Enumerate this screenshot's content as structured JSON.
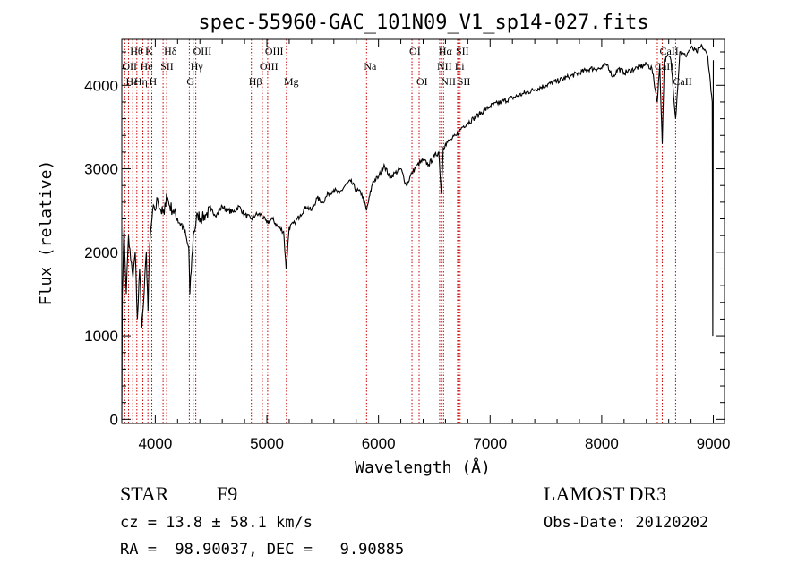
{
  "chart_data": {
    "type": "line",
    "title": "spec-55960-GAC_101N09_V1_sp14-027.fits",
    "xlabel": "Wavelength (Å)",
    "ylabel": "Flux (relative)",
    "xlim": [
      3700,
      9100
    ],
    "ylim": [
      -50,
      4550
    ],
    "xticks": [
      4000,
      5000,
      6000,
      7000,
      8000,
      9000
    ],
    "yticks": [
      0,
      1000,
      2000,
      3000,
      4000
    ],
    "grid": false,
    "series": [
      {
        "name": "spectrum",
        "x": [
          3700,
          3705,
          3720,
          3740,
          3760,
          3780,
          3800,
          3820,
          3840,
          3860,
          3880,
          3900,
          3920,
          3935,
          3950,
          3970,
          3990,
          4000,
          4020,
          4050,
          4080,
          4100,
          4130,
          4160,
          4200,
          4250,
          4290,
          4300,
          4310,
          4340,
          4380,
          4420,
          4450,
          4500,
          4550,
          4600,
          4650,
          4700,
          4750,
          4800,
          4861,
          4900,
          4950,
          5000,
          5050,
          5100,
          5150,
          5172,
          5200,
          5250,
          5300,
          5350,
          5400,
          5450,
          5500,
          5550,
          5600,
          5650,
          5700,
          5750,
          5800,
          5850,
          5893,
          5950,
          6000,
          6050,
          6100,
          6150,
          6200,
          6250,
          6300,
          6350,
          6400,
          6450,
          6500,
          6540,
          6563,
          6580,
          6600,
          6650,
          6700,
          6750,
          6800,
          6850,
          6900,
          6950,
          7000,
          7100,
          7200,
          7300,
          7400,
          7500,
          7600,
          7700,
          7800,
          7900,
          8000,
          8050,
          8100,
          8150,
          8200,
          8300,
          8400,
          8450,
          8498,
          8520,
          8542,
          8560,
          8600,
          8620,
          8662,
          8700,
          8750,
          8800,
          8850,
          8900,
          8950,
          8990,
          8995,
          9000
        ],
        "y": [
          0,
          1500,
          2300,
          1500,
          2200,
          1900,
          1700,
          2000,
          1200,
          1800,
          1100,
          1500,
          2000,
          1300,
          2100,
          2400,
          2550,
          2500,
          2650,
          2500,
          2450,
          2700,
          2550,
          2500,
          2400,
          2300,
          2100,
          2050,
          1500,
          2200,
          2450,
          2400,
          2450,
          2500,
          2450,
          2550,
          2500,
          2480,
          2550,
          2450,
          2400,
          2450,
          2450,
          2350,
          2400,
          2300,
          2250,
          1800,
          2300,
          2350,
          2450,
          2550,
          2500,
          2650,
          2600,
          2700,
          2750,
          2700,
          2800,
          2850,
          2750,
          2700,
          2500,
          2850,
          2900,
          3050,
          2900,
          2950,
          3000,
          2800,
          2950,
          3050,
          3100,
          3050,
          3150,
          3200,
          2700,
          3250,
          3300,
          3350,
          3400,
          3500,
          3550,
          3600,
          3650,
          3700,
          3750,
          3800,
          3850,
          3900,
          3950,
          4000,
          4050,
          4100,
          4150,
          4200,
          4200,
          4250,
          4100,
          4200,
          4150,
          4200,
          4250,
          4200,
          3800,
          4250,
          3300,
          4300,
          4350,
          4300,
          3600,
          4400,
          4350,
          4450,
          4400,
          4470,
          4350,
          3800,
          1000,
          4300
        ]
      }
    ],
    "line_labels": [
      {
        "text": "Hθ",
        "x": 3798,
        "row": 1
      },
      {
        "text": "K",
        "x": 3934,
        "row": 1
      },
      {
        "text": "Hδ",
        "x": 4102,
        "row": 1
      },
      {
        "text": "OIII",
        "x": 4363,
        "row": 1
      },
      {
        "text": "OIII",
        "x": 5007,
        "row": 1
      },
      {
        "text": "OI",
        "x": 6300,
        "row": 1
      },
      {
        "text": "Hα",
        "x": 6563,
        "row": 1
      },
      {
        "text": "SII",
        "x": 6717,
        "row": 1
      },
      {
        "text": "CaII",
        "x": 8542,
        "row": 1
      },
      {
        "text": "OII",
        "x": 3727,
        "row": 2
      },
      {
        "text": "He",
        "x": 3889,
        "row": 2
      },
      {
        "text": "SII",
        "x": 4070,
        "row": 2
      },
      {
        "text": "Hγ",
        "x": 4340,
        "row": 2
      },
      {
        "text": "OIII",
        "x": 4959,
        "row": 2
      },
      {
        "text": "Na",
        "x": 5893,
        "row": 2
      },
      {
        "text": "NII",
        "x": 6548,
        "row": 2
      },
      {
        "text": "Li",
        "x": 6708,
        "row": 2
      },
      {
        "text": "CaII",
        "x": 8498,
        "row": 2
      },
      {
        "text": "Hη",
        "x": 3835,
        "row": 3
      },
      {
        "text": "H",
        "x": 3969,
        "row": 3
      },
      {
        "text": "G",
        "x": 4305,
        "row": 3
      },
      {
        "text": "Hβ",
        "x": 4861,
        "row": 3
      },
      {
        "text": "Mg",
        "x": 5175,
        "row": 3
      },
      {
        "text": "OI",
        "x": 6364,
        "row": 3
      },
      {
        "text": "NII",
        "x": 6583,
        "row": 3
      },
      {
        "text": "SII",
        "x": 6731,
        "row": 3
      },
      {
        "text": "CaII",
        "x": 8662,
        "row": 3
      },
      {
        "text": "Hε",
        "x": 3760,
        "row": 3
      }
    ],
    "line_markers_x": [
      3727,
      3760,
      3798,
      3835,
      3889,
      3934,
      3969,
      4070,
      4102,
      4305,
      4340,
      4363,
      4861,
      4959,
      5007,
      5175,
      5893,
      6300,
      6364,
      6548,
      6563,
      6583,
      6708,
      6717,
      6731,
      8498,
      8542,
      8662
    ],
    "colors": {
      "line_markers": "#cc0000",
      "spectrum": "#000000",
      "axes": "#000000"
    }
  },
  "info": {
    "object_type": "STAR",
    "subclass": "F9",
    "survey": "LAMOST DR3",
    "cz": "cz = 13.8 ± 58.1 km/s",
    "obs_date": "Obs-Date: 20120202",
    "coords": "RA =  98.90037, DEC =   9.90885"
  }
}
